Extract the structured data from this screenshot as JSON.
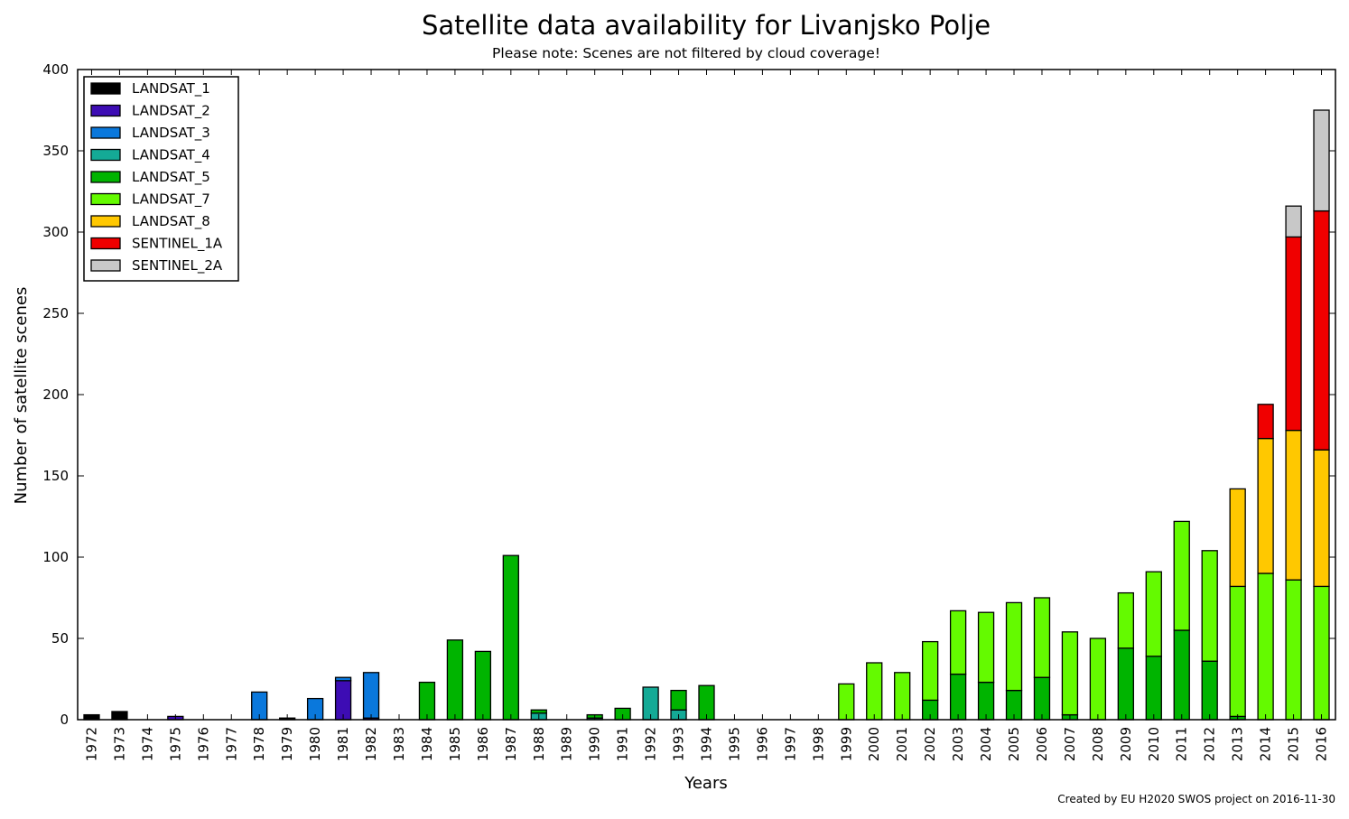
{
  "chart_data": {
    "type": "bar",
    "stacked": true,
    "title": "Satellite data availability for Livanjsko Polje",
    "subtitle": "Please note: Scenes are not filtered by cloud coverage!",
    "xlabel": "Years",
    "ylabel": "Number of satellite scenes",
    "credit": "Created by EU H2020 SWOS project on 2016-11-30",
    "ylim": [
      0,
      400
    ],
    "yticks": [
      0,
      50,
      100,
      150,
      200,
      250,
      300,
      350,
      400
    ],
    "legend_position": "top-left",
    "grid": false,
    "categories": [
      "1972",
      "1973",
      "1974",
      "1975",
      "1976",
      "1977",
      "1978",
      "1979",
      "1980",
      "1981",
      "1982",
      "1983",
      "1984",
      "1985",
      "1986",
      "1987",
      "1988",
      "1989",
      "1990",
      "1991",
      "1992",
      "1993",
      "1994",
      "1995",
      "1996",
      "1997",
      "1998",
      "1999",
      "2000",
      "2001",
      "2002",
      "2003",
      "2004",
      "2005",
      "2006",
      "2007",
      "2008",
      "2009",
      "2010",
      "2011",
      "2012",
      "2013",
      "2014",
      "2015",
      "2016"
    ],
    "series": [
      {
        "name": "LANDSAT_1",
        "color": "#000000",
        "values": [
          3,
          5,
          0,
          0,
          0,
          0,
          0,
          1,
          0,
          0,
          0,
          0,
          0,
          0,
          0,
          0,
          0,
          0,
          0,
          0,
          0,
          0,
          0,
          0,
          0,
          0,
          0,
          0,
          0,
          0,
          0,
          0,
          0,
          0,
          0,
          0,
          0,
          0,
          0,
          0,
          0,
          0,
          0,
          0,
          0
        ]
      },
      {
        "name": "LANDSAT_2",
        "color": "#3d0cb4",
        "values": [
          0,
          0,
          0,
          2,
          0,
          0,
          0,
          0,
          0,
          24,
          1,
          0,
          0,
          0,
          0,
          0,
          0,
          0,
          0,
          0,
          0,
          0,
          0,
          0,
          0,
          0,
          0,
          0,
          0,
          0,
          0,
          0,
          0,
          0,
          0,
          0,
          0,
          0,
          0,
          0,
          0,
          0,
          0,
          0,
          0
        ]
      },
      {
        "name": "LANDSAT_3",
        "color": "#0a78dc",
        "values": [
          0,
          0,
          0,
          0,
          0,
          0,
          17,
          0,
          13,
          2,
          28,
          0,
          0,
          0,
          0,
          0,
          0,
          0,
          0,
          0,
          0,
          0,
          0,
          0,
          0,
          0,
          0,
          0,
          0,
          0,
          0,
          0,
          0,
          0,
          0,
          0,
          0,
          0,
          0,
          0,
          0,
          0,
          0,
          0,
          0
        ]
      },
      {
        "name": "LANDSAT_4",
        "color": "#14aa96",
        "values": [
          0,
          0,
          0,
          0,
          0,
          0,
          0,
          0,
          0,
          0,
          0,
          0,
          0,
          0,
          0,
          0,
          4,
          0,
          1,
          0,
          20,
          6,
          0,
          0,
          0,
          0,
          0,
          0,
          0,
          0,
          0,
          0,
          0,
          0,
          0,
          0,
          0,
          0,
          0,
          0,
          0,
          0,
          0,
          0,
          0
        ]
      },
      {
        "name": "LANDSAT_5",
        "color": "#00b400",
        "values": [
          0,
          0,
          0,
          0,
          0,
          0,
          0,
          0,
          0,
          0,
          0,
          0,
          23,
          49,
          42,
          101,
          2,
          0,
          2,
          7,
          0,
          12,
          21,
          0,
          0,
          0,
          0,
          0,
          0,
          0,
          12,
          28,
          23,
          18,
          26,
          3,
          0,
          44,
          39,
          55,
          36,
          2,
          0,
          0,
          0
        ]
      },
      {
        "name": "LANDSAT_7",
        "color": "#64fa00",
        "values": [
          0,
          0,
          0,
          0,
          0,
          0,
          0,
          0,
          0,
          0,
          0,
          0,
          0,
          0,
          0,
          0,
          0,
          0,
          0,
          0,
          0,
          0,
          0,
          0,
          0,
          0,
          0,
          22,
          35,
          29,
          36,
          39,
          43,
          54,
          49,
          51,
          50,
          34,
          52,
          67,
          68,
          80,
          90,
          86,
          82
        ]
      },
      {
        "name": "LANDSAT_8",
        "color": "#ffc800",
        "values": [
          0,
          0,
          0,
          0,
          0,
          0,
          0,
          0,
          0,
          0,
          0,
          0,
          0,
          0,
          0,
          0,
          0,
          0,
          0,
          0,
          0,
          0,
          0,
          0,
          0,
          0,
          0,
          0,
          0,
          0,
          0,
          0,
          0,
          0,
          0,
          0,
          0,
          0,
          0,
          0,
          0,
          60,
          83,
          92,
          84
        ]
      },
      {
        "name": "SENTINEL_1A",
        "color": "#f00000",
        "values": [
          0,
          0,
          0,
          0,
          0,
          0,
          0,
          0,
          0,
          0,
          0,
          0,
          0,
          0,
          0,
          0,
          0,
          0,
          0,
          0,
          0,
          0,
          0,
          0,
          0,
          0,
          0,
          0,
          0,
          0,
          0,
          0,
          0,
          0,
          0,
          0,
          0,
          0,
          0,
          0,
          0,
          0,
          21,
          119,
          147
        ]
      },
      {
        "name": "SENTINEL_2A",
        "color": "#c8c8c8",
        "values": [
          0,
          0,
          0,
          0,
          0,
          0,
          0,
          0,
          0,
          0,
          0,
          0,
          0,
          0,
          0,
          0,
          0,
          0,
          0,
          0,
          0,
          0,
          0,
          0,
          0,
          0,
          0,
          0,
          0,
          0,
          0,
          0,
          0,
          0,
          0,
          0,
          0,
          0,
          0,
          0,
          0,
          0,
          0,
          19,
          62
        ]
      }
    ]
  }
}
